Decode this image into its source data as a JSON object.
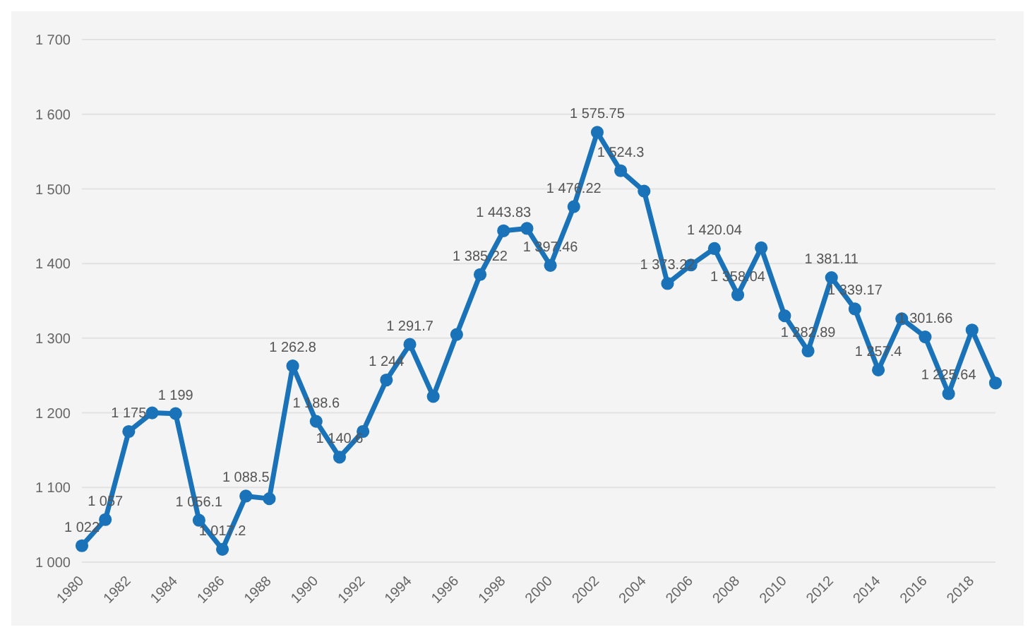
{
  "chart_data": {
    "type": "line",
    "categories": [
      "1980",
      null,
      "1982",
      null,
      "1984",
      null,
      "1986",
      null,
      "1988",
      null,
      "1990",
      null,
      "1992",
      null,
      "1994",
      null,
      "1996",
      null,
      "1998",
      null,
      "2000",
      null,
      "2002",
      null,
      "2004",
      null,
      "2006",
      null,
      "2008",
      null,
      "2010",
      null,
      "2012",
      null,
      "2014",
      null,
      "2016",
      null,
      "2018",
      null
    ],
    "series": [
      {
        "color": "#1a73b8",
        "values": [
          1022,
          1057,
          1175,
          1200,
          1199,
          1056.1,
          1017.2,
          1088.5,
          1085,
          1262.8,
          1188.6,
          1140.6,
          1175,
          1244,
          1291.7,
          1222,
          1305,
          1385.22,
          1443.83,
          1447,
          1397.46,
          1476.22,
          1575.75,
          1524.3,
          1497,
          1373.22,
          1398,
          1420.04,
          1358.04,
          1421,
          1330,
          1282.89,
          1381.11,
          1339.17,
          1257.4,
          1326,
          1301.66,
          1225.64,
          1311,
          1240
        ],
        "value_labels": [
          "1 022",
          "1 057",
          "1 175",
          null,
          "1 199",
          "1 056.1",
          "1 017.2",
          "1 088.5",
          null,
          "1 262.8",
          "1 188.6",
          "1 140.6",
          null,
          "1 244",
          "1 291.7",
          null,
          null,
          "1 385.22",
          "1 443.83",
          null,
          "1 397.46",
          "1 476.22",
          "1 575.75",
          "1 524.3",
          null,
          "1 373.22",
          null,
          "1 420.04",
          "1 358.04",
          null,
          null,
          "1 282.89",
          "1 381.11",
          "1 339.17",
          "1 257.4",
          null,
          "1 301.66",
          "1 225.64",
          null,
          null
        ]
      }
    ],
    "ylim": [
      1000,
      1700
    ],
    "yticks": [
      {
        "value": 1000,
        "label": "1 000"
      },
      {
        "value": 1100,
        "label": "1 100"
      },
      {
        "value": 1200,
        "label": "1 200"
      },
      {
        "value": 1300,
        "label": "1 300"
      },
      {
        "value": 1400,
        "label": "1 400"
      },
      {
        "value": 1500,
        "label": "1 500"
      },
      {
        "value": 1600,
        "label": "1 600"
      },
      {
        "value": 1700,
        "label": "1 700"
      }
    ],
    "grid": "y",
    "marker": "circle",
    "line_style": "solid",
    "legend": false
  }
}
